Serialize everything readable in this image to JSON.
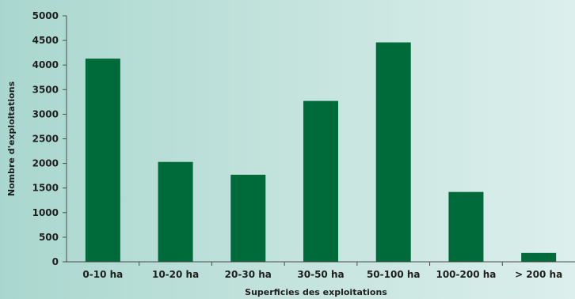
{
  "chart_data": {
    "type": "bar",
    "title": "",
    "xlabel": "Superficies des exploitations",
    "ylabel": "Nombre d'exploitations",
    "categories": [
      "0-10 ha",
      "10-20 ha",
      "20-30 ha",
      "30-50 ha",
      "50-100 ha",
      "100-200 ha",
      "> 200 ha"
    ],
    "values": [
      4130,
      2030,
      1770,
      3270,
      4460,
      1420,
      180
    ],
    "ylim": [
      0,
      5000
    ],
    "yticks": [
      "0",
      "500",
      "1000",
      "1500",
      "2000",
      "2500",
      "3000",
      "3500",
      "4000",
      "4500",
      "5000"
    ],
    "grid": false,
    "legend": "none",
    "colors": {
      "bar": "#006b3a",
      "axis": "#4d4d4d",
      "background_start": "#a9d7cf",
      "background_end": "#dcefec"
    }
  }
}
